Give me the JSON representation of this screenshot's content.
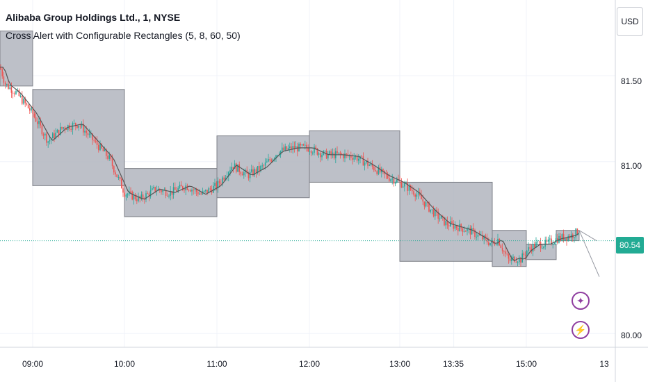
{
  "legend": {
    "symbol_line": "Alibaba Group Holdings Ltd., 1, NYSE",
    "study_line": "Cross Alert with Configurable Rectangles (5, 8, 60, 50)"
  },
  "currency_button": "USD",
  "price_axis": {
    "ticks": [
      "81.50",
      "81.00",
      "80.00"
    ]
  },
  "time_axis": {
    "ticks": [
      "09:00",
      "10:00",
      "11:00",
      "12:00",
      "13:00",
      "13:35",
      "15:00",
      "13"
    ]
  },
  "last_price": "80.54",
  "colors": {
    "up": "#26a69a",
    "down": "#ef5350",
    "ma": "#555555",
    "rect_fill": "#b2b5be",
    "rect_border": "#7e8088",
    "last_line": "#22ab94",
    "icon": "#8f3ea0"
  },
  "icons": [
    "sparkle-icon",
    "lightning-icon"
  ],
  "chart_data": {
    "type": "candlestick",
    "title": "Alibaba Group Holdings Ltd., 1, NYSE",
    "y_range": [
      79.92,
      81.9
    ],
    "last_price": 80.54,
    "rectangles": [
      {
        "start": "08:30",
        "end": "09:00",
        "high": 81.76,
        "low": 81.44
      },
      {
        "start": "09:00",
        "end": "10:00",
        "high": 81.42,
        "low": 80.86
      },
      {
        "start": "10:00",
        "end": "11:00",
        "high": 80.96,
        "low": 80.68
      },
      {
        "start": "11:00",
        "end": "12:00",
        "high": 81.15,
        "low": 80.79
      },
      {
        "start": "12:00",
        "end": "13:00",
        "high": 81.18,
        "low": 80.88
      },
      {
        "start": "13:00",
        "end": "14:00",
        "high": 80.88,
        "low": 80.42
      },
      {
        "start": "14:00",
        "end": "15:00",
        "high": 80.6,
        "low": 80.39
      },
      {
        "start": "15:00",
        "end": "15:30",
        "high": 80.52,
        "low": 80.43
      },
      {
        "start": "15:30",
        "end": "15:45",
        "high": 80.6,
        "low": 80.54
      }
    ],
    "price_path": [
      [
        "08:30",
        81.55
      ],
      [
        "08:35",
        81.45
      ],
      [
        "08:45",
        81.4
      ],
      [
        "09:00",
        81.28
      ],
      [
        "09:10",
        81.12
      ],
      [
        "09:20",
        81.2
      ],
      [
        "09:30",
        81.22
      ],
      [
        "09:40",
        81.12
      ],
      [
        "09:50",
        81.02
      ],
      [
        "10:00",
        80.82
      ],
      [
        "10:10",
        80.78
      ],
      [
        "10:20",
        80.84
      ],
      [
        "10:30",
        80.82
      ],
      [
        "10:40",
        80.86
      ],
      [
        "10:50",
        80.81
      ],
      [
        "11:00",
        80.86
      ],
      [
        "11:10",
        80.98
      ],
      [
        "11:20",
        80.92
      ],
      [
        "11:30",
        80.97
      ],
      [
        "11:40",
        81.06
      ],
      [
        "11:50",
        81.08
      ],
      [
        "12:00",
        81.08
      ],
      [
        "12:10",
        81.04
      ],
      [
        "12:20",
        81.04
      ],
      [
        "12:30",
        81.03
      ],
      [
        "12:40",
        80.98
      ],
      [
        "12:50",
        80.92
      ],
      [
        "13:00",
        80.88
      ],
      [
        "13:10",
        80.82
      ],
      [
        "13:20",
        80.72
      ],
      [
        "13:30",
        80.64
      ],
      [
        "13:45",
        80.6
      ],
      [
        "14:00",
        80.52
      ],
      [
        "14:10",
        80.55
      ],
      [
        "14:20",
        80.48
      ],
      [
        "14:30",
        80.42
      ],
      [
        "14:40",
        80.44
      ],
      [
        "14:50",
        80.43
      ],
      [
        "15:00",
        80.48
      ],
      [
        "15:10",
        80.52
      ],
      [
        "15:20",
        80.52
      ],
      [
        "15:30",
        80.55
      ],
      [
        "15:40",
        80.57
      ],
      [
        "15:45",
        80.6
      ]
    ],
    "ma_line": "moving average (gray)",
    "x_ticks": [
      "09:00",
      "10:00",
      "11:00",
      "12:00",
      "13:00",
      "13:35",
      "15:00",
      "13"
    ],
    "y_ticks": [
      81.5,
      81.0,
      80.0
    ]
  }
}
